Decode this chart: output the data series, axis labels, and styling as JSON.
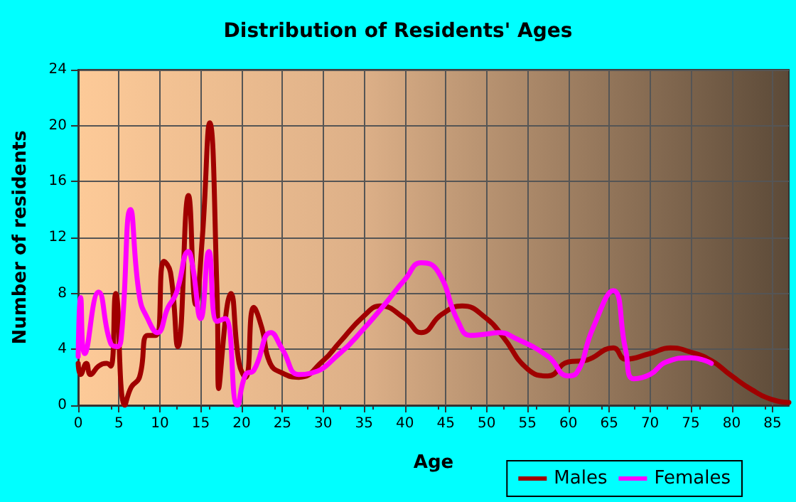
{
  "chart_data": {
    "type": "line",
    "title": "Distribution of Residents' Ages",
    "xlabel": "Age",
    "ylabel": "Number of residents",
    "xlim": [
      0,
      87
    ],
    "xticks": [
      0,
      5,
      10,
      15,
      20,
      25,
      30,
      35,
      40,
      45,
      50,
      55,
      60,
      65,
      70,
      75,
      80,
      85
    ],
    "ylim": [
      0,
      24
    ],
    "yticks": [
      0,
      4,
      8,
      12,
      16,
      20,
      24
    ],
    "grid": true,
    "legend": "bottom right",
    "marker": "none",
    "line_style": "solid",
    "series": [
      {
        "name": "Males",
        "color": "#a00000",
        "x": [
          0,
          0.3,
          1,
          1.5,
          2.5,
          3.5,
          4,
          4.6,
          5.7,
          6.5,
          7.5,
          8.5,
          9.5,
          10.5,
          11.3,
          12.2,
          13.5,
          14.4,
          15.2,
          16.1,
          17,
          17.2,
          18.7,
          19.7,
          20.5,
          21.5,
          22.5,
          23.5,
          25,
          27,
          30,
          32,
          35,
          37,
          40,
          42,
          44.5,
          47,
          50,
          52,
          55,
          57.5,
          60,
          62,
          65.5,
          67,
          70,
          72.5,
          75,
          77.5,
          80,
          82.5,
          85,
          87
        ],
        "values": [
          3,
          2.2,
          3,
          2.2,
          2.8,
          3,
          2.8,
          8,
          0,
          1.3,
          2,
          5,
          5,
          10.3,
          9.5,
          4.2,
          15,
          7.2,
          12,
          20.2,
          8,
          1.2,
          8,
          3,
          2,
          7,
          5.5,
          3,
          2.3,
          2,
          3.2,
          4.5,
          6.4,
          7.1,
          6.2,
          5.2,
          6.5,
          7.1,
          6.2,
          4.9,
          2.6,
          2.1,
          3.1,
          3.2,
          4.1,
          3.3,
          3.7,
          4.1,
          3.8,
          3.2,
          2.1,
          1.1,
          0.4,
          0.2
        ]
      },
      {
        "name": "Females",
        "color": "#ff00ff",
        "x": [
          0,
          0.3,
          0.8,
          2.5,
          4,
          4.8,
          5.3,
          6.4,
          7.5,
          8.5,
          9.7,
          11,
          12,
          13.5,
          14,
          15,
          16,
          17,
          18,
          19.5,
          20.5,
          21.5,
          23.6,
          25,
          27,
          28.5,
          32,
          35,
          37.5,
          40,
          42,
          44,
          46.5,
          48,
          50,
          51.5,
          53.5,
          57.5,
          60,
          61,
          63,
          65.5,
          67,
          68,
          70,
          72,
          75,
          77.5
        ],
        "values": [
          3.5,
          7.7,
          3.7,
          8.1,
          4.4,
          4.2,
          5,
          14,
          7.8,
          6.2,
          5.2,
          7,
          8,
          11,
          10,
          6.2,
          11,
          6,
          6.2,
          0,
          2.2,
          2.5,
          5.2,
          4,
          2.2,
          2.3,
          3.7,
          5.5,
          7.2,
          9,
          10.2,
          9.6,
          6,
          5,
          5.1,
          5.2,
          4.8,
          3.5,
          2.1,
          2.3,
          5.5,
          8.2,
          4,
          1.9,
          2.2,
          3.1,
          3.4,
          3
        ]
      }
    ]
  }
}
